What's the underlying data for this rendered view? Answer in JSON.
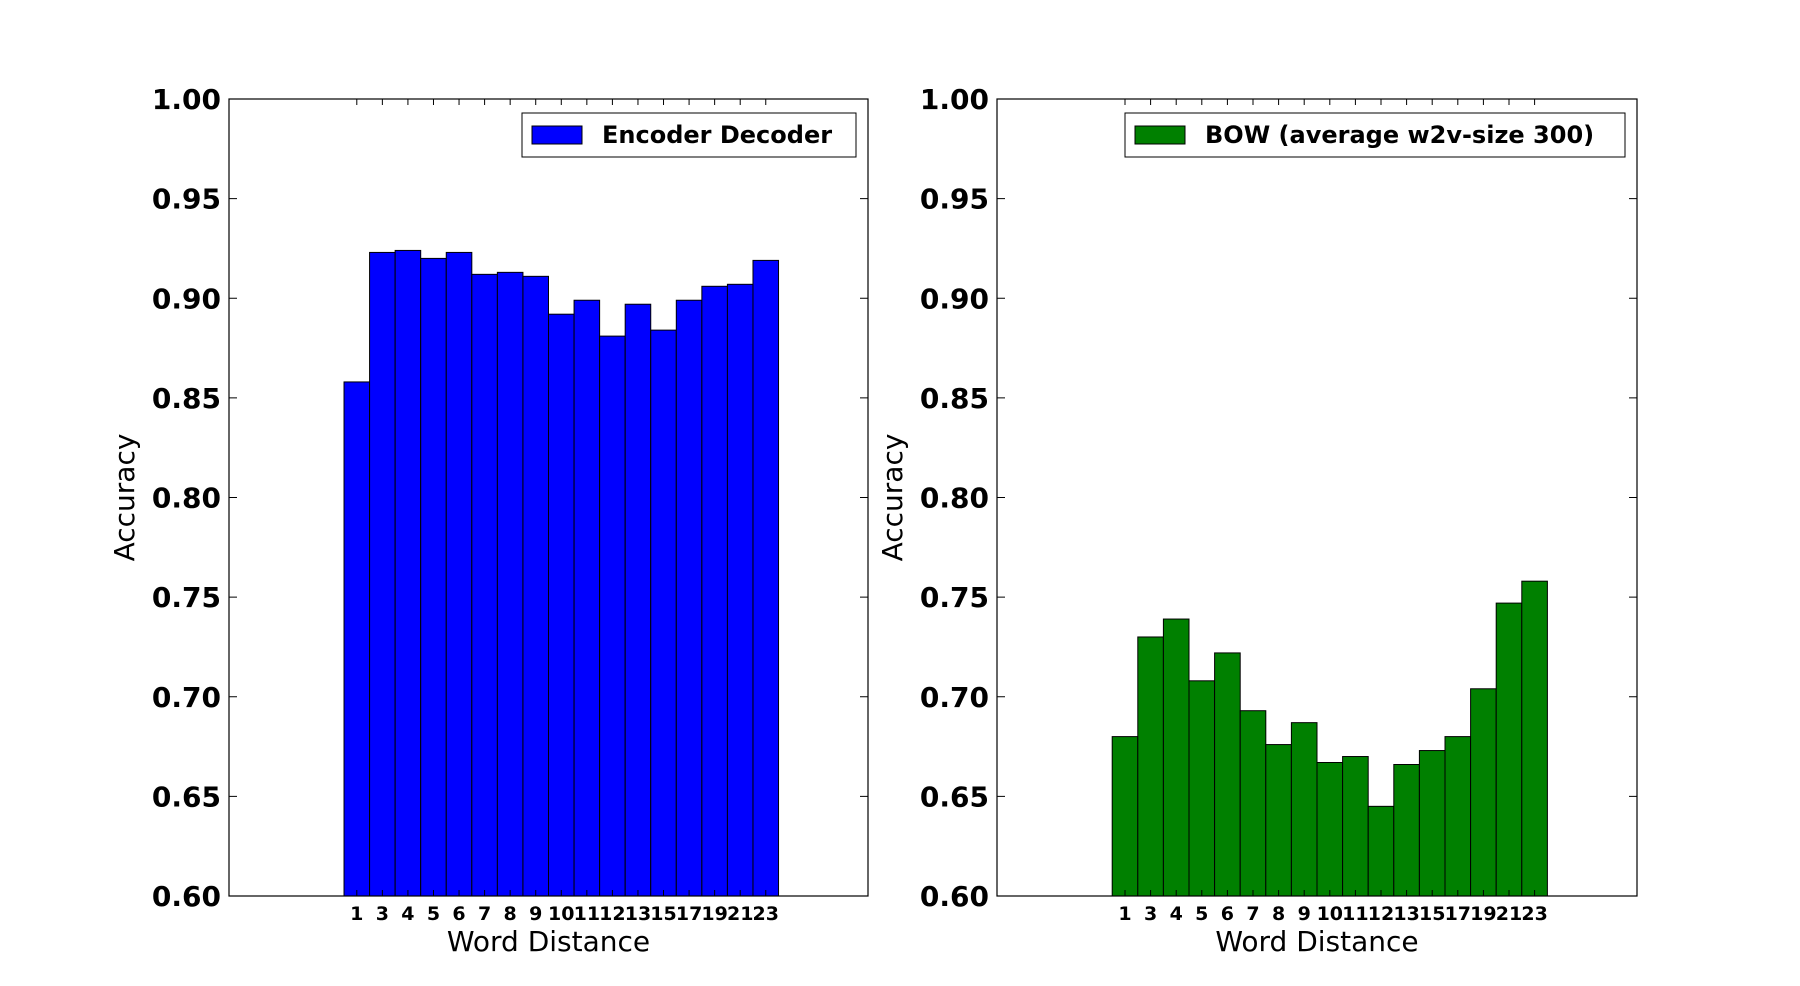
{
  "chart_data": [
    {
      "type": "bar",
      "categories": [
        "1",
        "3",
        "4",
        "5",
        "6",
        "7",
        "8",
        "9",
        "10",
        "11",
        "12",
        "13",
        "15",
        "17",
        "19",
        "21",
        "23"
      ],
      "series": [
        {
          "name": "Encoder Decoder",
          "color": "#0000ff",
          "values": [
            0.858,
            0.923,
            0.924,
            0.92,
            0.923,
            0.912,
            0.913,
            0.911,
            0.892,
            0.899,
            0.881,
            0.897,
            0.884,
            0.899,
            0.906,
            0.907,
            0.919
          ]
        }
      ],
      "xlabel": "Word Distance",
      "ylabel": "Accuracy",
      "ylim": [
        0.6,
        1.0
      ],
      "yticks": [
        "0.60",
        "0.65",
        "0.70",
        "0.75",
        "0.80",
        "0.85",
        "0.90",
        "0.95",
        "1.00"
      ],
      "legend_position": "top-right",
      "grid": false
    },
    {
      "type": "bar",
      "categories": [
        "1",
        "3",
        "4",
        "5",
        "6",
        "7",
        "8",
        "9",
        "10",
        "11",
        "12",
        "13",
        "15",
        "17",
        "19",
        "21",
        "23"
      ],
      "series": [
        {
          "name": "BOW (average w2v-size 300)",
          "color": "#008000",
          "values": [
            0.68,
            0.73,
            0.739,
            0.708,
            0.722,
            0.693,
            0.676,
            0.687,
            0.667,
            0.67,
            0.645,
            0.666,
            0.673,
            0.68,
            0.704,
            0.747,
            0.758
          ]
        }
      ],
      "xlabel": "Word Distance",
      "ylabel": "Accuracy",
      "ylim": [
        0.6,
        1.0
      ],
      "yticks": [
        "0.60",
        "0.65",
        "0.70",
        "0.75",
        "0.80",
        "0.85",
        "0.90",
        "0.95",
        "1.00"
      ],
      "legend_position": "top-right",
      "grid": false
    }
  ]
}
